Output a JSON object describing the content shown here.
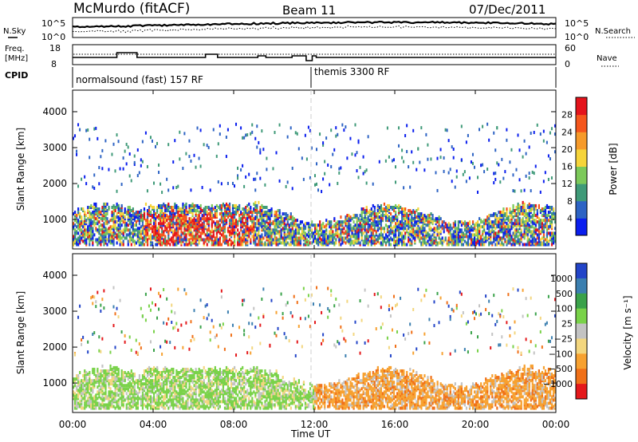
{
  "header": {
    "station": "McMurdo (fitACF)",
    "beam": "Beam 11",
    "date": "07/Dec/2011"
  },
  "noise_panel": {
    "left_label": "N.Sky",
    "right_label": "N.Search",
    "left_ticks": [
      "10^5",
      "10^0"
    ],
    "right_ticks": [
      "10^5",
      "10^0"
    ]
  },
  "freq_panel": {
    "left_label_1": "Freq.",
    "left_label_2": "[MHz]",
    "right_label": "Nave",
    "left_ticks": [
      "18",
      "8"
    ],
    "right_ticks": [
      "60",
      "0"
    ]
  },
  "cpid": {
    "label": "CPID",
    "segments": [
      {
        "name": "normalsound (fast) 157 RF",
        "start_hour": 0
      },
      {
        "name": "themis 3300 RF",
        "start_hour": 12
      }
    ]
  },
  "chart_data": [
    {
      "type": "heatmap",
      "title": "Power",
      "ylabel": "Slant Range [km]",
      "ylim": [
        180,
        4600
      ],
      "yticks": [
        "1000",
        "2000",
        "3000",
        "4000"
      ],
      "colorbar_label": "Power [dB]",
      "colorbar_ticks": [
        "4",
        "8",
        "12",
        "16",
        "20",
        "24",
        "28"
      ],
      "colorbar_colors": [
        "#0a1eee",
        "#2d63c4",
        "#3f9a78",
        "#7cc95a",
        "#f6d43a",
        "#f69a2a",
        "#f5561c",
        "#e4131b"
      ]
    },
    {
      "type": "heatmap",
      "title": "Velocity",
      "ylabel": "Slant Range [km]",
      "ylim": [
        180,
        4600
      ],
      "yticks": [
        "1000",
        "2000",
        "3000",
        "4000"
      ],
      "colorbar_label": "Velocity [m s⁻¹]",
      "colorbar_ticks": [
        "1000",
        "500",
        "100",
        "25",
        "−25",
        "−100",
        "−500",
        "−1000"
      ],
      "colorbar_colors": [
        "#2244c8",
        "#3b7fb0",
        "#3aa24a",
        "#79d249",
        "#c3c3c3",
        "#f3d67e",
        "#f7a130",
        "#f07018",
        "#e4181b"
      ]
    }
  ],
  "time_axis": {
    "label": "Time UT",
    "ticks": [
      "00:00",
      "04:00",
      "08:00",
      "12:00",
      "16:00",
      "20:00",
      "00:00"
    ]
  }
}
